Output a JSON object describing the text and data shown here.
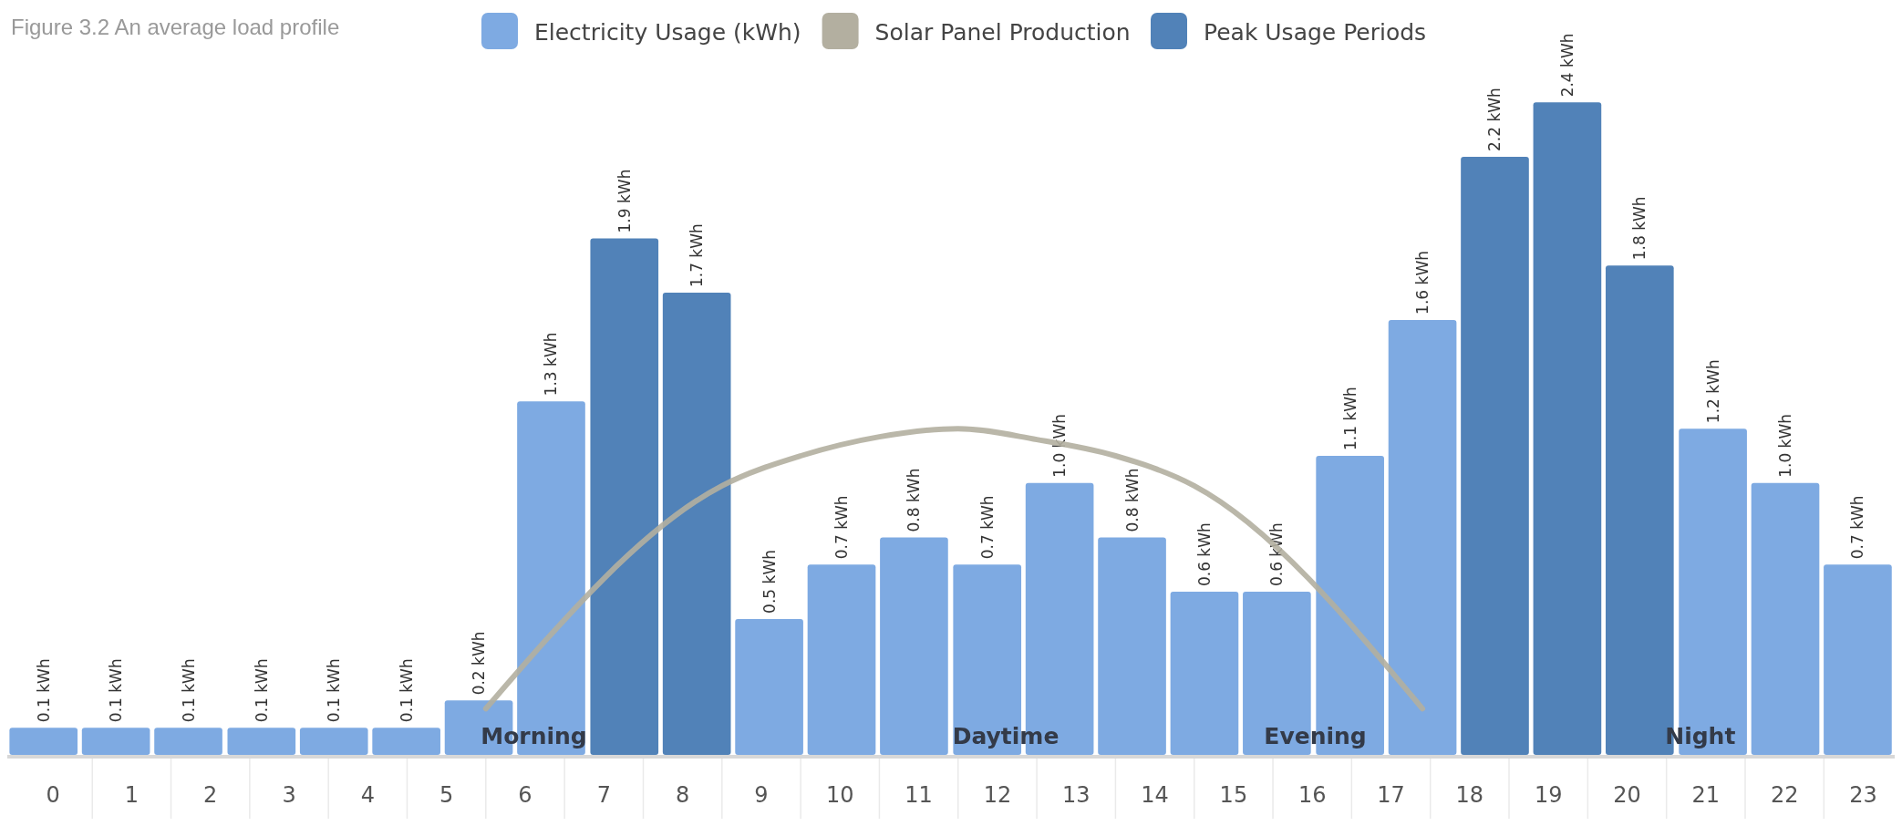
{
  "chart_data": {
    "type": "bar",
    "title": "Figure 3.2 An average load profile",
    "xlim": [
      -0.58,
      23.4
    ],
    "xticks": [
      0,
      1,
      2,
      3,
      4,
      5,
      6,
      7,
      8,
      9,
      10,
      11,
      12,
      13,
      14,
      15,
      16,
      17,
      18,
      19,
      20,
      21,
      22,
      23
    ],
    "ylim": [
      0,
      2.75
    ],
    "tick_labels": "x",
    "legend": "top",
    "series": [
      {
        "name": "Electricity Usage (kWh)",
        "color": "#7eaae2",
        "x": [
          -0.12,
          0.8,
          1.72,
          2.65,
          3.57,
          4.49,
          5.41,
          6.33,
          9.1,
          10.02,
          10.94,
          11.87,
          12.79,
          13.71,
          14.63,
          15.55,
          16.48,
          17.4,
          21.09,
          22.01,
          22.93
        ],
        "values": [
          0.1,
          0.1,
          0.1,
          0.1,
          0.1,
          0.1,
          0.2,
          1.3,
          0.5,
          0.7,
          0.8,
          0.7,
          1.0,
          0.8,
          0.6,
          0.6,
          1.1,
          1.6,
          1.2,
          1.0,
          0.7
        ],
        "value_labels": [
          "0.1 kWh",
          "0.1 kWh",
          "0.1 kWh",
          "0.1 kWh",
          "0.1 kWh",
          "0.1 kWh",
          "0.2 kWh",
          "1.3 kWh",
          "0.5 kWh",
          "0.7 kWh",
          "0.8 kWh",
          "0.7 kWh",
          "1.0 kWh",
          "0.8 kWh",
          "0.6 kWh",
          "0.6 kWh",
          "1.1 kWh",
          "1.6 kWh",
          "1.2 kWh",
          "1.0 kWh",
          "0.7 kWh"
        ]
      },
      {
        "name": "Solar Panel Production",
        "type": "line",
        "color": "#b3afa0",
        "x": [
          5.5,
          8.5,
          9.5,
          10.5,
          11.5,
          12.5,
          13.5,
          14.5,
          17.4
        ],
        "values": [
          0.17,
          0.99,
          1.1,
          1.17,
          1.2,
          1.16,
          1.1,
          0.99,
          0.17
        ]
      },
      {
        "name": "Peak Usage Periods",
        "color": "#5182b8",
        "x": [
          7.26,
          8.18,
          18.32,
          19.24,
          20.16
        ],
        "values": [
          1.9,
          1.7,
          2.2,
          2.4,
          1.8
        ],
        "value_labels": [
          "1.9 kWh",
          "1.7 kWh",
          "2.2 kWh",
          "2.4 kWh",
          "1.8 kWh"
        ]
      }
    ],
    "annotations": [
      "Morning",
      "Daytime",
      "Evening",
      "Night"
    ]
  }
}
